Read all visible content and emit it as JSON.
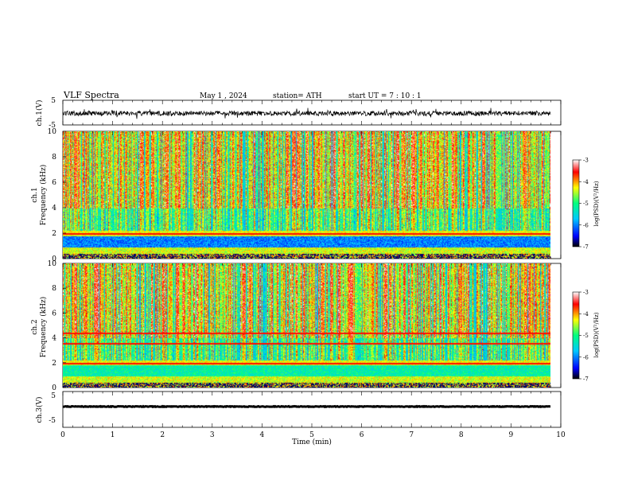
{
  "header": {
    "title": "VLF  Spectra",
    "date": "May 1  , 2024",
    "station": "station= ATH",
    "start_ut": "start  UT  =   7  : 10 : 1"
  },
  "chart_data": [
    {
      "type": "line",
      "ylabel": "ch.1(V)",
      "ylim": [
        -5,
        5
      ],
      "yticks": [
        "5",
        "-5"
      ],
      "xlim": [
        0,
        10
      ],
      "description_series": "waveform",
      "series": [
        {
          "name": "",
          "baseline": 0,
          "amplitude_range": [
            -3,
            3
          ],
          "color": "#000000"
        }
      ]
    },
    {
      "type": "heatmap",
      "ylabel_channel": "ch.1",
      "ylabel": "Frequency  (kHz)",
      "ylim": [
        0,
        10
      ],
      "yticks": [
        "0",
        "2",
        "4",
        "6",
        "8",
        "10"
      ],
      "xlim": [
        0,
        9.8
      ],
      "colorbar": {
        "label": "log(PSD)(V²/Hz)",
        "range": [
          -7,
          -3
        ],
        "ticks": [
          "-3",
          "-4",
          "-5",
          "-6",
          "-7"
        ]
      },
      "features": {
        "quiet_band_khz": [
          1.0,
          1.8
        ],
        "active_band_khz": [
          2.0,
          10
        ],
        "line_khz": [
          2.0
        ]
      }
    },
    {
      "type": "heatmap",
      "ylabel_channel": "ch.2",
      "ylabel": "Frequency  (kHz)",
      "ylim": [
        0,
        10
      ],
      "yticks": [
        "0",
        "2",
        "4",
        "6",
        "8",
        "10"
      ],
      "xlim": [
        0,
        9.8
      ],
      "colorbar": {
        "label": "log(PSD)(V²/Hz)",
        "range": [
          -7,
          -3
        ],
        "ticks": [
          "-3",
          "-4",
          "-5",
          "-6",
          "-7"
        ]
      },
      "features": {
        "line_khz": [
          2.0,
          3.6,
          4.4
        ],
        "quiet_band_khz": [
          1.0,
          1.8
        ]
      }
    },
    {
      "type": "line",
      "ylabel": "ch.3(V)",
      "ylim": [
        -5,
        5
      ],
      "yticks": [
        "5",
        "-5"
      ],
      "xlim": [
        0,
        10
      ],
      "xlabel": "Time  (min)",
      "xticks": [
        "0",
        "1",
        "2",
        "3",
        "4",
        "5",
        "6",
        "7",
        "8",
        "9",
        "10"
      ],
      "series": [
        {
          "name": "",
          "baseline": 0,
          "amplitude": 0.3,
          "color": "#000000"
        }
      ]
    }
  ],
  "colormap": [
    "#000000",
    "#0000ff",
    "#00c8ff",
    "#00ff80",
    "#ffff00",
    "#ff0000",
    "#ffffff"
  ]
}
